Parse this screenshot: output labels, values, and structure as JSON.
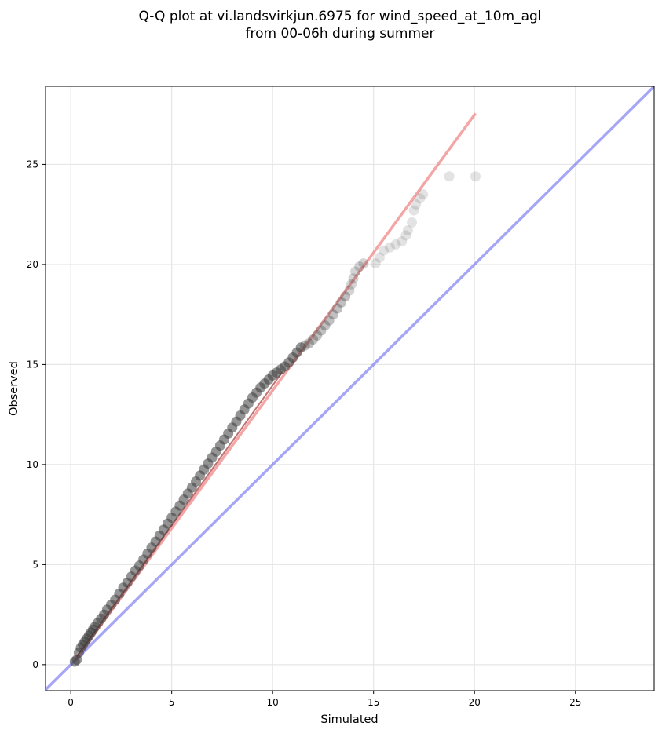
{
  "chart_data": {
    "type": "scatter",
    "title_line1": "Q-Q plot at vi.landsvirkjun.6975 for wind_speed_at_10m_agl",
    "title_line2": "from 00-06h during summer",
    "xlabel": "Simulated",
    "ylabel": "Observed",
    "xlim": [
      -1.25,
      28.9
    ],
    "ylim": [
      -1.3,
      28.9
    ],
    "xticks": [
      0,
      5,
      10,
      15,
      20,
      25
    ],
    "yticks": [
      0,
      5,
      10,
      15,
      20,
      25
    ],
    "xtick_labels": [
      "0",
      "5",
      "10",
      "15",
      "20",
      "25"
    ],
    "ytick_labels": [
      "0",
      "5",
      "10",
      "15",
      "20",
      "25"
    ],
    "grid": true,
    "legend": "none",
    "quantile_points": {
      "x": [
        0.2,
        0.3,
        0.4,
        0.5,
        0.6,
        0.7,
        0.8,
        0.9,
        1.0,
        1.1,
        1.2,
        1.35,
        1.5,
        1.65,
        1.8,
        2.0,
        2.2,
        2.4,
        2.6,
        2.8,
        3.0,
        3.2,
        3.4,
        3.6,
        3.8,
        4.0,
        4.2,
        4.4,
        4.6,
        4.8,
        5.0,
        5.2,
        5.4,
        5.6,
        5.8,
        6.0,
        6.2,
        6.4,
        6.6,
        6.8,
        7.0,
        7.2,
        7.4,
        7.6,
        7.8,
        8.0,
        8.2,
        8.4,
        8.6,
        8.8,
        9.0,
        9.2,
        9.4,
        9.6,
        9.8,
        10.0,
        10.2,
        10.4,
        10.6,
        10.8,
        11.0,
        11.2,
        11.4,
        11.6,
        11.8,
        12.0,
        12.2,
        12.4,
        12.6,
        12.8,
        13.0,
        13.2,
        13.4,
        13.6,
        13.8,
        13.9,
        14.0,
        14.1,
        14.3,
        14.5,
        15.1,
        15.3,
        15.5,
        15.8,
        16.1,
        16.4,
        16.6,
        16.7,
        16.9,
        17.0,
        17.1,
        17.3,
        17.45,
        18.75,
        20.05
      ],
      "y": [
        0.15,
        0.25,
        0.6,
        0.85,
        1.0,
        1.15,
        1.3,
        1.45,
        1.6,
        1.75,
        1.9,
        2.1,
        2.3,
        2.5,
        2.75,
        3.0,
        3.25,
        3.55,
        3.85,
        4.1,
        4.4,
        4.7,
        4.95,
        5.25,
        5.55,
        5.85,
        6.15,
        6.45,
        6.75,
        7.05,
        7.35,
        7.65,
        7.95,
        8.25,
        8.55,
        8.85,
        9.15,
        9.45,
        9.75,
        10.05,
        10.35,
        10.65,
        10.95,
        11.25,
        11.55,
        11.85,
        12.15,
        12.45,
        12.75,
        13.05,
        13.35,
        13.6,
        13.85,
        14.05,
        14.25,
        14.45,
        14.6,
        14.75,
        14.9,
        15.1,
        15.35,
        15.6,
        15.85,
        15.95,
        16.05,
        16.25,
        16.45,
        16.7,
        16.95,
        17.2,
        17.5,
        17.8,
        18.1,
        18.4,
        18.7,
        19.0,
        19.3,
        19.65,
        19.9,
        20.05,
        20.05,
        20.35,
        20.7,
        20.85,
        21.0,
        21.15,
        21.45,
        21.7,
        22.1,
        22.7,
        23.0,
        23.3,
        23.5,
        24.4,
        24.4
      ]
    },
    "fit_line": {
      "x": [
        0.2,
        20.05
      ],
      "y": [
        0.2,
        27.55
      ]
    },
    "identity_line": {
      "x": [
        -1.25,
        28.9
      ],
      "y": [
        -1.25,
        28.9
      ]
    },
    "colors": {
      "points": "#3c3c3c",
      "fit_line": "#f08080",
      "fit_line_dense": "#8b0000",
      "identity_line": "#6b6bf0",
      "grid": "#e6e6e6",
      "axes": "#000000"
    }
  }
}
